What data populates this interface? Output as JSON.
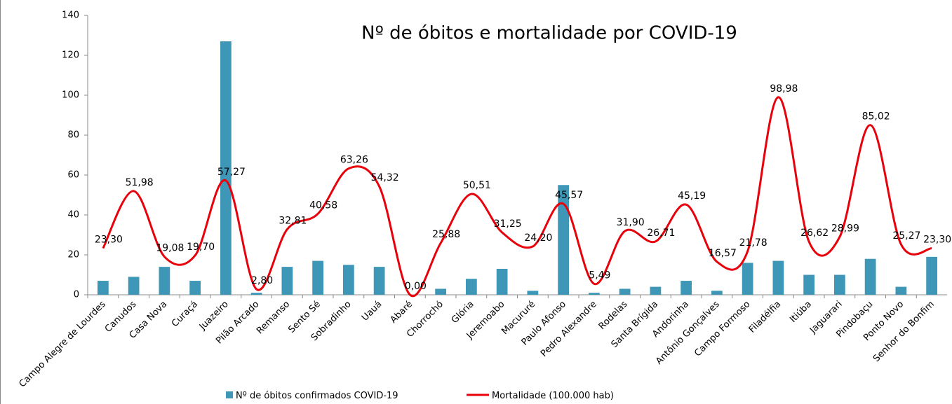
{
  "chart_data": {
    "type": "combo",
    "title": "Nº de óbitos e mortalidade por COVID-19",
    "categories": [
      "Campo Alegre de Lourdes",
      "Canudos",
      "Casa Nova",
      "Curaçá",
      "Juazeiro",
      "Pilão Arcado",
      "Remanso",
      "Sento Sé",
      "Sobradinho",
      "Uauá",
      "Abaré",
      "Chorrochó",
      "Glória",
      "Jeremoabo",
      "Macururé",
      "Paulo Afonso",
      "Pedro Alexandre",
      "Rodelas",
      "Santa Brígida",
      "Andorinha",
      "Antônio Gonçalves",
      "Campo Formoso",
      "Filadélfia",
      "Itiúba",
      "Jaguarari",
      "Pindobaçu",
      "Ponto Novo",
      "Senhor do Bonfim"
    ],
    "series": [
      {
        "name": "Nº de óbitos confirmados COVID-19",
        "type": "bar",
        "color": "#3f97b8",
        "values": [
          7,
          9,
          14,
          7,
          127,
          1,
          14,
          17,
          15,
          14,
          0,
          3,
          8,
          13,
          2,
          55,
          1,
          3,
          4,
          7,
          2,
          16,
          17,
          10,
          10,
          18,
          4,
          19
        ]
      },
      {
        "name": "Mortalidade (100.000 hab)",
        "type": "line",
        "color": "#e8000b",
        "values": [
          23.3,
          51.98,
          19.08,
          19.7,
          57.27,
          2.8,
          32.81,
          40.58,
          63.26,
          54.32,
          0.0,
          25.88,
          50.51,
          31.25,
          24.2,
          45.57,
          5.49,
          31.9,
          26.71,
          45.19,
          16.57,
          21.78,
          98.98,
          26.62,
          28.99,
          85.02,
          25.27,
          23.3
        ],
        "value_labels": [
          "23,30",
          "51,98",
          "19,08",
          "19,70",
          "57,27",
          "2,80",
          "32,81",
          "40,58",
          "63,26",
          "54,32",
          "0,00",
          "25,88",
          "50,51",
          "31,25",
          "24,20",
          "45,57",
          "5,49",
          "31,90",
          "26,71",
          "45,19",
          "16,57",
          "21,78",
          "98,98",
          "26,62",
          "28,99",
          "85,02",
          "25,27",
          "23,30"
        ]
      }
    ],
    "ylim": [
      0,
      140
    ],
    "yticks": [
      0,
      20,
      40,
      60,
      80,
      100,
      120,
      140
    ],
    "grid": false
  }
}
